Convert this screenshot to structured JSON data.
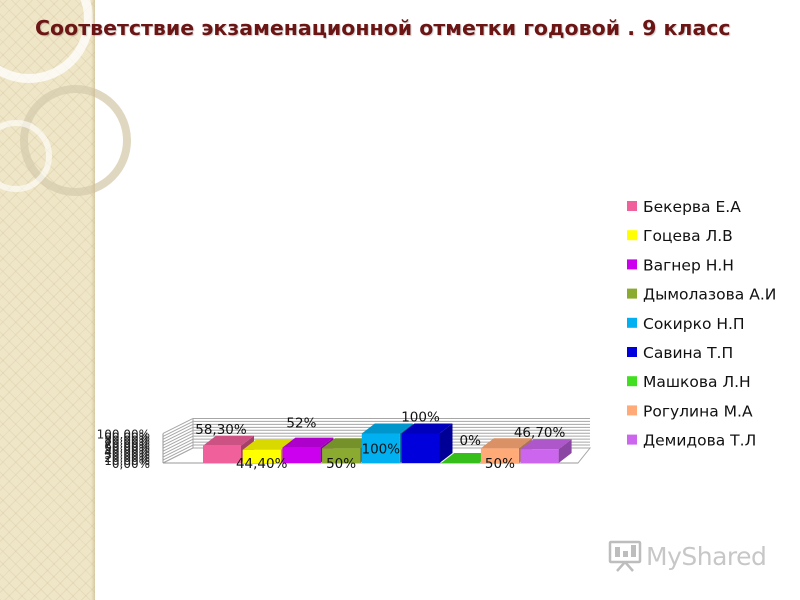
{
  "title": "Соответствие экзаменационной отметки годовой . 9 класс",
  "chart_data": {
    "type": "bar",
    "style": "3d-clustered",
    "categories": [
      "Бекерва Е.А",
      "Гоцева Л.В",
      "Вагнер Н.Н",
      "Дымолазова А.И",
      "Сокирко Н.П",
      "Савина Т.П",
      "Машкова Л.Н",
      "Рогулина М.А",
      "Демидова Т.Л"
    ],
    "values": [
      58.3,
      44.4,
      52,
      50,
      100,
      100,
      0,
      50,
      46.7
    ],
    "data_labels": [
      "58,30%",
      "44,40%",
      "52%",
      "50%",
      "100%",
      "100%",
      "0%",
      "50%",
      "46,70%"
    ],
    "colors": [
      "#f0609a",
      "#ffff00",
      "#cc00ee",
      "#8aaa30",
      "#00b0f0",
      "#0000dd",
      "#40e020",
      "#ffaa77",
      "#cc66ee"
    ],
    "y_ticks": [
      "0,00%",
      "10,00%",
      "20,00%",
      "30,00%",
      "40,00%",
      "50,00%",
      "60,00%",
      "70,00%",
      "80,00%",
      "90,00%",
      "100,00%"
    ],
    "ylim": [
      0,
      100
    ],
    "xlabel": "",
    "ylabel": "",
    "grid": true,
    "legend_position": "right"
  },
  "watermark": {
    "text": "MyShared"
  }
}
